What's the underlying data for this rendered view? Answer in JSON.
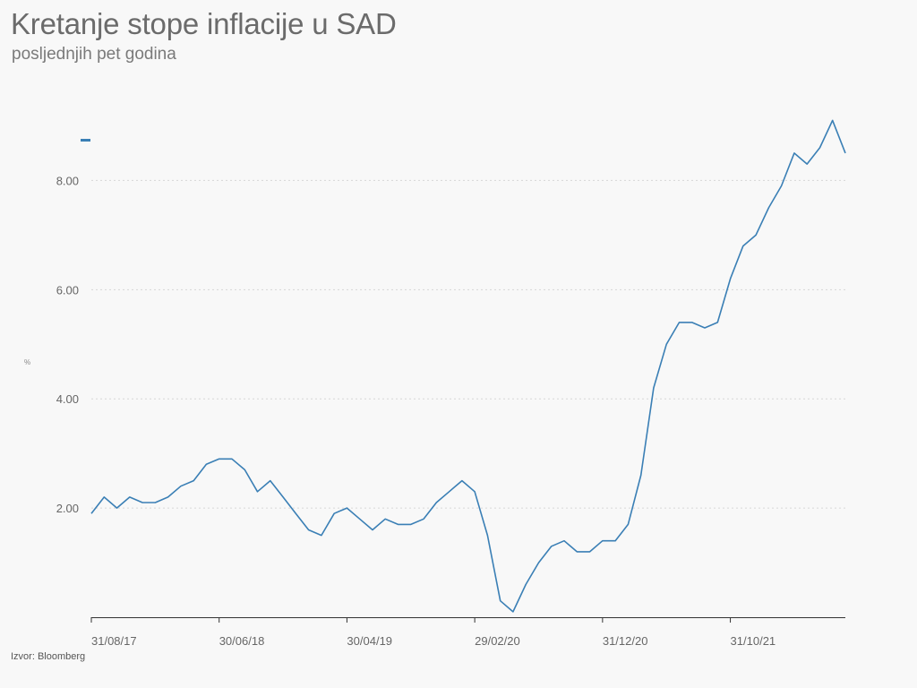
{
  "title": "Kretanje stope inflacije u SAD",
  "subtitle": "posljednjih pet godina",
  "source": "Izvor: Bloomberg",
  "colors": {
    "line": "#3a7fb5",
    "grid": "#d6d6d6",
    "axis": "#333333"
  },
  "chart_data": {
    "type": "line",
    "title": "Kretanje stope inflacije u SAD",
    "subtitle": "posljednjih pet godina",
    "ylabel": "%",
    "xlabel": "",
    "ylim": [
      0,
      9.5
    ],
    "grid": true,
    "legend": "top-left",
    "yticks": [
      2.0,
      4.0,
      6.0,
      8.0
    ],
    "ytick_labels": [
      "2.00",
      "4.00",
      "6.00",
      "8.00"
    ],
    "xtick_labels": [
      "31/08/17",
      "30/06/18",
      "30/04/19",
      "29/02/20",
      "31/12/20",
      "31/10/21"
    ],
    "xtick_index": [
      0,
      10,
      20,
      30,
      40,
      50
    ],
    "series": [
      {
        "values": [
          1.9,
          2.2,
          2.0,
          2.2,
          2.1,
          2.1,
          2.2,
          2.4,
          2.5,
          2.8,
          2.9,
          2.9,
          2.7,
          2.3,
          2.5,
          2.2,
          1.9,
          1.6,
          1.5,
          1.9,
          2.0,
          1.8,
          1.6,
          1.8,
          1.7,
          1.7,
          1.8,
          2.1,
          2.3,
          2.5,
          2.3,
          1.5,
          0.3,
          0.1,
          0.6,
          1.0,
          1.3,
          1.4,
          1.2,
          1.2,
          1.4,
          1.4,
          1.7,
          2.6,
          4.2,
          5.0,
          5.4,
          5.4,
          5.3,
          5.4,
          6.2,
          6.8,
          7.0,
          7.5,
          7.9,
          8.5,
          8.3,
          8.6,
          9.1,
          8.5
        ]
      }
    ]
  }
}
